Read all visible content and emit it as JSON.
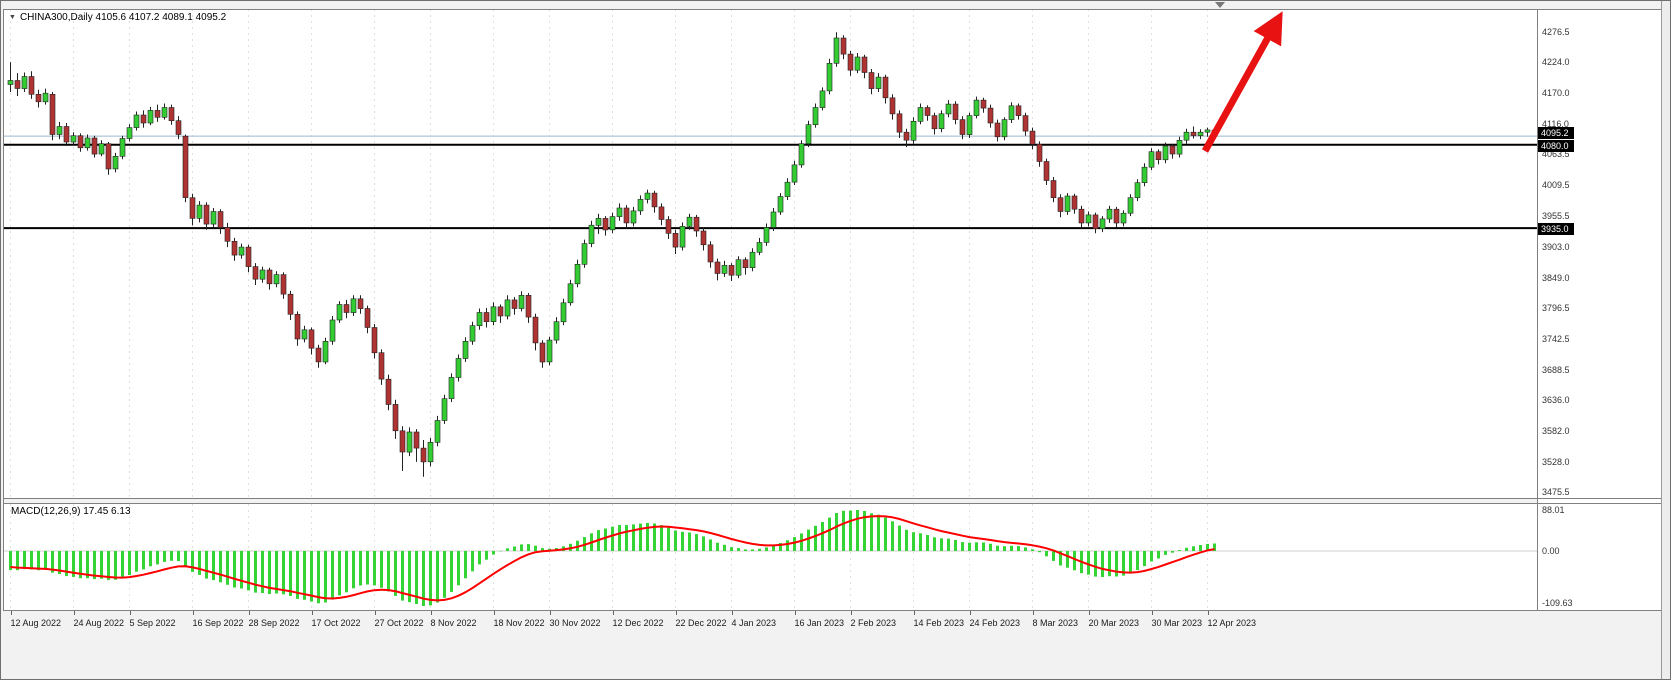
{
  "header": {
    "symbol_ohlc_label": "CHINA300,Daily 4105.6 4107.2 4089.1 4095.2"
  },
  "macd": {
    "label": "MACD(12,26,9) 17.45 6.13"
  },
  "colors": {
    "bull": "#33cc33",
    "bear": "#b03333",
    "wick_outline": "#222222",
    "macd_histogram": "#33d433",
    "macd_signal": "#ff0000",
    "level_line": "#000000",
    "current_price_line": "#9db7cd",
    "arrow": "#e81212",
    "tag_bg": "#000000",
    "tag_fg": "#ffffff",
    "grid": "#e0e0e0"
  },
  "chart_data": {
    "type": "candlestick",
    "symbol": "CHINA300",
    "timeframe": "Daily",
    "last_bar_ohlc": [
      4105.6,
      4107.2,
      4089.1,
      4095.2
    ],
    "current_price": 4095.2,
    "horizontal_levels": [
      4080.0,
      3935.0
    ],
    "price_axis_ticks": [
      4276.5,
      4224.0,
      4170.0,
      4116.0,
      4063.5,
      4009.5,
      3955.5,
      3903.0,
      3849.0,
      3796.5,
      3742.5,
      3688.5,
      3636.0,
      3582.0,
      3528.0,
      3475.5
    ],
    "annotation": {
      "type": "arrow-up-right",
      "color": "#e81212"
    },
    "date_labels": [
      "12 Aug 2022",
      "24 Aug 2022",
      "5 Sep 2022",
      "16 Sep 2022",
      "28 Sep 2022",
      "17 Oct 2022",
      "27 Oct 2022",
      "8 Nov 2022",
      "18 Nov 2022",
      "30 Nov 2022",
      "12 Dec 2022",
      "22 Dec 2022",
      "4 Jan 2023",
      "16 Jan 2023",
      "2 Feb 2023",
      "14 Feb 2023",
      "24 Feb 2023",
      "8 Mar 2023",
      "20 Mar 2023",
      "30 Mar 2023",
      "12 Apr 2023"
    ],
    "date_label_candle_indices": [
      0,
      9,
      17,
      26,
      34,
      43,
      52,
      60,
      69,
      77,
      86,
      95,
      103,
      112,
      120,
      129,
      137,
      146,
      154,
      163,
      171
    ],
    "candles_ohlc": [
      [
        4185,
        4224,
        4172,
        4192
      ],
      [
        4192,
        4205,
        4165,
        4178
      ],
      [
        4178,
        4206,
        4172,
        4199
      ],
      [
        4199,
        4208,
        4160,
        4168
      ],
      [
        4168,
        4176,
        4145,
        4155
      ],
      [
        4155,
        4178,
        4150,
        4170
      ],
      [
        4168,
        4172,
        4088,
        4098
      ],
      [
        4098,
        4120,
        4090,
        4112
      ],
      [
        4112,
        4118,
        4078,
        4085
      ],
      [
        4085,
        4102,
        4080,
        4096
      ],
      [
        4096,
        4100,
        4068,
        4075
      ],
      [
        4075,
        4098,
        4070,
        4092
      ],
      [
        4092,
        4096,
        4058,
        4064
      ],
      [
        4064,
        4088,
        4060,
        4082
      ],
      [
        4082,
        4085,
        4028,
        4038
      ],
      [
        4038,
        4066,
        4032,
        4060
      ],
      [
        4060,
        4096,
        4055,
        4091
      ],
      [
        4091,
        4116,
        4086,
        4110
      ],
      [
        4110,
        4138,
        4105,
        4132
      ],
      [
        4132,
        4140,
        4110,
        4118
      ],
      [
        4118,
        4146,
        4114,
        4140
      ],
      [
        4140,
        4150,
        4120,
        4128
      ],
      [
        4128,
        4152,
        4124,
        4145
      ],
      [
        4145,
        4150,
        4115,
        4122
      ],
      [
        4122,
        4130,
        4090,
        4098
      ],
      [
        4095,
        4098,
        3980,
        3988
      ],
      [
        3988,
        3995,
        3940,
        3952
      ],
      [
        3952,
        3982,
        3945,
        3975
      ],
      [
        3975,
        3980,
        3932,
        3942
      ],
      [
        3942,
        3970,
        3936,
        3964
      ],
      [
        3964,
        3968,
        3925,
        3936
      ],
      [
        3936,
        3944,
        3902,
        3912
      ],
      [
        3912,
        3918,
        3878,
        3888
      ],
      [
        3888,
        3908,
        3882,
        3902
      ],
      [
        3902,
        3906,
        3858,
        3868
      ],
      [
        3868,
        3874,
        3836,
        3846
      ],
      [
        3846,
        3868,
        3840,
        3862
      ],
      [
        3862,
        3866,
        3828,
        3838
      ],
      [
        3838,
        3860,
        3832,
        3854
      ],
      [
        3854,
        3858,
        3812,
        3820
      ],
      [
        3820,
        3826,
        3775,
        3785
      ],
      [
        3785,
        3790,
        3730,
        3742
      ],
      [
        3742,
        3765,
        3736,
        3758
      ],
      [
        3758,
        3762,
        3715,
        3726
      ],
      [
        3726,
        3732,
        3692,
        3702
      ],
      [
        3702,
        3744,
        3698,
        3738
      ],
      [
        3738,
        3782,
        3732,
        3775
      ],
      [
        3775,
        3808,
        3770,
        3802
      ],
      [
        3802,
        3810,
        3778,
        3788
      ],
      [
        3788,
        3818,
        3782,
        3812
      ],
      [
        3812,
        3818,
        3786,
        3795
      ],
      [
        3795,
        3800,
        3752,
        3762
      ],
      [
        3762,
        3768,
        3708,
        3718
      ],
      [
        3718,
        3724,
        3662,
        3672
      ],
      [
        3672,
        3680,
        3618,
        3628
      ],
      [
        3628,
        3636,
        3568,
        3582
      ],
      [
        3582,
        3590,
        3512,
        3545
      ],
      [
        3545,
        3588,
        3538,
        3580
      ],
      [
        3580,
        3585,
        3528,
        3552
      ],
      [
        3552,
        3566,
        3502,
        3528
      ],
      [
        3528,
        3570,
        3520,
        3562
      ],
      [
        3562,
        3608,
        3555,
        3600
      ],
      [
        3600,
        3645,
        3594,
        3638
      ],
      [
        3638,
        3682,
        3632,
        3675
      ],
      [
        3675,
        3715,
        3668,
        3708
      ],
      [
        3708,
        3745,
        3702,
        3738
      ],
      [
        3738,
        3772,
        3732,
        3765
      ],
      [
        3765,
        3795,
        3758,
        3788
      ],
      [
        3788,
        3796,
        3762,
        3772
      ],
      [
        3772,
        3806,
        3766,
        3798
      ],
      [
        3798,
        3802,
        3770,
        3782
      ],
      [
        3782,
        3818,
        3776,
        3810
      ],
      [
        3810,
        3815,
        3784,
        3795
      ],
      [
        3795,
        3825,
        3790,
        3818
      ],
      [
        3818,
        3822,
        3770,
        3780
      ],
      [
        3780,
        3786,
        3722,
        3735
      ],
      [
        3735,
        3740,
        3692,
        3702
      ],
      [
        3702,
        3746,
        3696,
        3740
      ],
      [
        3740,
        3780,
        3734,
        3772
      ],
      [
        3772,
        3812,
        3766,
        3805
      ],
      [
        3805,
        3845,
        3800,
        3838
      ],
      [
        3838,
        3880,
        3832,
        3872
      ],
      [
        3872,
        3915,
        3866,
        3908
      ],
      [
        3908,
        3948,
        3902,
        3940
      ],
      [
        3940,
        3960,
        3925,
        3952
      ],
      [
        3952,
        3956,
        3922,
        3932
      ],
      [
        3932,
        3962,
        3926,
        3955
      ],
      [
        3955,
        3978,
        3948,
        3970
      ],
      [
        3970,
        3975,
        3935,
        3944
      ],
      [
        3944,
        3972,
        3938,
        3965
      ],
      [
        3965,
        3992,
        3958,
        3985
      ],
      [
        3985,
        4002,
        3978,
        3996
      ],
      [
        3996,
        4000,
        3962,
        3972
      ],
      [
        3972,
        3978,
        3940,
        3950
      ],
      [
        3950,
        3956,
        3916,
        3926
      ],
      [
        3926,
        3932,
        3890,
        3902
      ],
      [
        3902,
        3945,
        3896,
        3938
      ],
      [
        3938,
        3960,
        3932,
        3954
      ],
      [
        3954,
        3958,
        3920,
        3930
      ],
      [
        3930,
        3936,
        3896,
        3906
      ],
      [
        3906,
        3912,
        3866,
        3876
      ],
      [
        3876,
        3882,
        3844,
        3856
      ],
      [
        3856,
        3878,
        3850,
        3870
      ],
      [
        3870,
        3874,
        3843,
        3853
      ],
      [
        3853,
        3886,
        3848,
        3880
      ],
      [
        3880,
        3884,
        3854,
        3866
      ],
      [
        3866,
        3900,
        3860,
        3893
      ],
      [
        3893,
        3918,
        3888,
        3910
      ],
      [
        3910,
        3943,
        3904,
        3936
      ],
      [
        3936,
        3970,
        3930,
        3963
      ],
      [
        3963,
        3996,
        3958,
        3990
      ],
      [
        3990,
        4022,
        3984,
        4015
      ],
      [
        4015,
        4052,
        4010,
        4045
      ],
      [
        4045,
        4088,
        4040,
        4082
      ],
      [
        4082,
        4122,
        4076,
        4115
      ],
      [
        4115,
        4152,
        4110,
        4145
      ],
      [
        4145,
        4180,
        4140,
        4174
      ],
      [
        4174,
        4230,
        4168,
        4222
      ],
      [
        4222,
        4276,
        4216,
        4266
      ],
      [
        4266,
        4271,
        4229,
        4238
      ],
      [
        4238,
        4244,
        4200,
        4210
      ],
      [
        4210,
        4240,
        4205,
        4233
      ],
      [
        4233,
        4237,
        4196,
        4206
      ],
      [
        4206,
        4212,
        4168,
        4178
      ],
      [
        4178,
        4205,
        4172,
        4198
      ],
      [
        4198,
        4202,
        4152,
        4162
      ],
      [
        4162,
        4168,
        4124,
        4134
      ],
      [
        4134,
        4140,
        4092,
        4102
      ],
      [
        4102,
        4108,
        4076,
        4088
      ],
      [
        4088,
        4128,
        4082,
        4121
      ],
      [
        4121,
        4152,
        4116,
        4145
      ],
      [
        4145,
        4149,
        4122,
        4131
      ],
      [
        4131,
        4136,
        4098,
        4108
      ],
      [
        4108,
        4140,
        4102,
        4134
      ],
      [
        4134,
        4158,
        4128,
        4151
      ],
      [
        4151,
        4156,
        4116,
        4124
      ],
      [
        4124,
        4130,
        4090,
        4098
      ],
      [
        4098,
        4136,
        4092,
        4131
      ],
      [
        4131,
        4164,
        4126,
        4158
      ],
      [
        4158,
        4162,
        4136,
        4144
      ],
      [
        4144,
        4150,
        4110,
        4118
      ],
      [
        4118,
        4124,
        4086,
        4094
      ],
      [
        4094,
        4128,
        4088,
        4124
      ],
      [
        4124,
        4154,
        4118,
        4148
      ],
      [
        4148,
        4152,
        4124,
        4131
      ],
      [
        4131,
        4136,
        4096,
        4104
      ],
      [
        4104,
        4110,
        4072,
        4081
      ],
      [
        4081,
        4086,
        4042,
        4051
      ],
      [
        4051,
        4056,
        4010,
        4018
      ],
      [
        4018,
        4024,
        3980,
        3988
      ],
      [
        3988,
        3994,
        3954,
        3964
      ],
      [
        3964,
        3996,
        3958,
        3991
      ],
      [
        3991,
        3995,
        3960,
        3968
      ],
      [
        3968,
        3974,
        3936,
        3944
      ],
      [
        3944,
        3964,
        3938,
        3958
      ],
      [
        3958,
        3962,
        3926,
        3934
      ],
      [
        3934,
        3956,
        3928,
        3951
      ],
      [
        3951,
        3974,
        3944,
        3968
      ],
      [
        3968,
        3972,
        3936,
        3944
      ],
      [
        3944,
        3966,
        3938,
        3961
      ],
      [
        3961,
        3994,
        3956,
        3988
      ],
      [
        3988,
        4020,
        3982,
        4014
      ],
      [
        4014,
        4048,
        4008,
        4041
      ],
      [
        4041,
        4074,
        4036,
        4068
      ],
      [
        4068,
        4072,
        4046,
        4054
      ],
      [
        4054,
        4084,
        4048,
        4078
      ],
      [
        4078,
        4082,
        4056,
        4064
      ],
      [
        4064,
        4094,
        4058,
        4088
      ],
      [
        4088,
        4108,
        4082,
        4102
      ],
      [
        4102,
        4112,
        4091,
        4096
      ],
      [
        4096,
        4107,
        4090,
        4102
      ],
      [
        4102,
        4110,
        4094,
        4106
      ],
      [
        4105.6,
        4107.2,
        4089.1,
        4095.2
      ]
    ],
    "indicator": {
      "name": "MACD",
      "params": [
        12,
        26,
        9
      ],
      "readout": [
        17.45,
        6.13
      ],
      "axis_ticks": [
        88.01,
        0.0,
        -109.63
      ]
    }
  }
}
